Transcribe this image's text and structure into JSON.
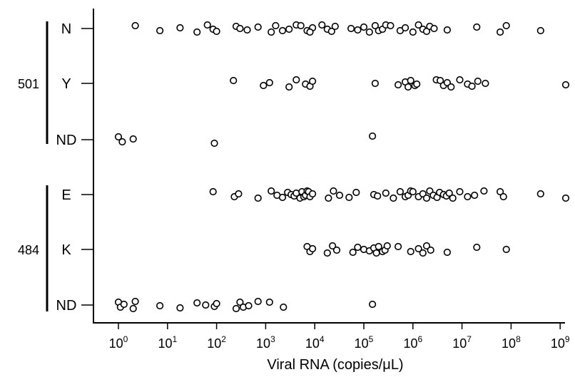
{
  "chart_data": {
    "type": "scatter",
    "xlabel": "Viral RNA (copies/μL)",
    "x_scale": "log10",
    "xlim": [
      0.55,
      2000000000
    ],
    "x_ticks": [
      {
        "base": "10",
        "exp": "0"
      },
      {
        "base": "10",
        "exp": "1"
      },
      {
        "base": "10",
        "exp": "2"
      },
      {
        "base": "10",
        "exp": "3"
      },
      {
        "base": "10",
        "exp": "4"
      },
      {
        "base": "10",
        "exp": "5"
      },
      {
        "base": "10",
        "exp": "6"
      },
      {
        "base": "10",
        "exp": "7"
      },
      {
        "base": "10",
        "exp": "8"
      },
      {
        "base": "10",
        "exp": "9"
      }
    ],
    "groups": [
      {
        "label": "501",
        "categories": [
          "N",
          "Y",
          "ND"
        ]
      },
      {
        "label": "484",
        "categories": [
          "E",
          "K",
          "ND"
        ]
      }
    ],
    "series": [
      {
        "group": "501",
        "category": "N",
        "x": [
          2.2,
          7,
          18,
          40,
          65,
          85,
          100,
          250,
          300,
          420,
          700,
          1300,
          1600,
          2200,
          3000,
          4200,
          5200,
          7000,
          9000,
          8000,
          14000,
          18000,
          22000,
          26000,
          55000,
          75000,
          100000,
          130000,
          170000,
          200000,
          240000,
          280000,
          350000,
          550000,
          700000,
          1000000,
          1300000,
          1600000,
          1900000,
          2200000,
          2700000,
          5000000,
          20000000,
          60000000,
          80000000,
          400000000
        ]
      },
      {
        "group": "501",
        "category": "Y",
        "x": [
          220,
          900,
          1200,
          3000,
          4200,
          6500,
          8000,
          9000,
          170000,
          500000,
          700000,
          800000,
          900000,
          1100000,
          1200000,
          3000000,
          3600000,
          4200000,
          5000000,
          6000000,
          9000000,
          13000000,
          16000000,
          21000000,
          30000000,
          1300000000
        ]
      },
      {
        "group": "501",
        "category": "ND",
        "x": [
          1.0,
          1.2,
          2.0,
          90,
          150000
        ]
      },
      {
        "group": "484",
        "category": "E",
        "x": [
          85,
          230,
          280,
          700,
          1300,
          1700,
          2200,
          2800,
          3300,
          3800,
          4200,
          5000,
          5500,
          6000,
          6500,
          7000,
          7500,
          8000,
          9000,
          19000,
          24000,
          32000,
          50000,
          70000,
          160000,
          190000,
          280000,
          400000,
          550000,
          700000,
          800000,
          900000,
          1000000,
          1300000,
          1600000,
          1900000,
          2200000,
          2600000,
          3100000,
          3500000,
          4200000,
          4800000,
          5500000,
          6500000,
          9000000,
          13000000,
          18000000,
          28000000,
          60000000,
          70000000,
          400000000,
          1300000000
        ]
      },
      {
        "group": "484",
        "category": "K",
        "x": [
          7000,
          8000,
          9000,
          18000,
          23000,
          28000,
          60000,
          75000,
          100000,
          130000,
          160000,
          180000,
          200000,
          240000,
          270000,
          300000,
          500000,
          900000,
          1300000,
          1600000,
          1900000,
          2300000,
          5000000,
          20000000,
          80000000
        ]
      },
      {
        "group": "484",
        "category": "ND",
        "x": [
          1.0,
          1.1,
          1.3,
          2.0,
          2.2,
          7,
          18,
          40,
          60,
          90,
          100,
          250,
          300,
          350,
          450,
          700,
          1200,
          2300,
          150000
        ]
      }
    ]
  }
}
